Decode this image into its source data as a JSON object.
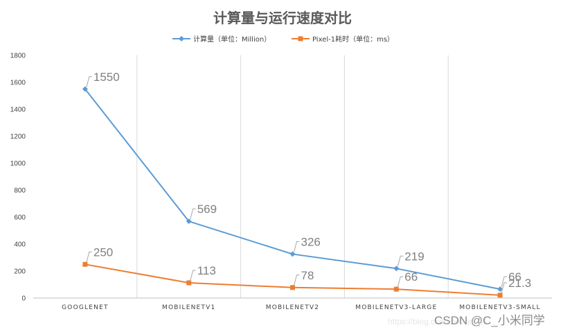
{
  "chart_data": {
    "type": "line",
    "title": "计算量与运行速度对比",
    "categories": [
      "GOOGLENET",
      "MOBILENETV1",
      "MOBILENETV2",
      "MOBILENETV3-LARGE",
      "MOBILENETV3-SMALL"
    ],
    "series": [
      {
        "name": "计算量（单位：Million）",
        "values": [
          1550,
          569,
          326,
          219,
          66
        ],
        "labels": [
          "1550",
          "569",
          "326",
          "219",
          "66"
        ],
        "color": "#5b9bd5",
        "marker": "diamond"
      },
      {
        "name": "Pixel-1耗时（单位：ms）",
        "values": [
          250,
          113,
          78,
          66,
          21.3
        ],
        "labels": [
          "250",
          "113",
          "78",
          "66",
          "21.3"
        ],
        "color": "#ed7d31",
        "marker": "square"
      }
    ],
    "yticks": [
      "0",
      "200",
      "400",
      "600",
      "800",
      "1000",
      "1200",
      "1400",
      "1600",
      "1800"
    ],
    "ylim": [
      0,
      1800
    ],
    "xlabel": "",
    "ylabel": "",
    "legend": "top",
    "grid": "vertical"
  },
  "watermark": {
    "url": "https://blog.csdn.net/qq_41...",
    "text": "CSDN @C_小米同学"
  }
}
